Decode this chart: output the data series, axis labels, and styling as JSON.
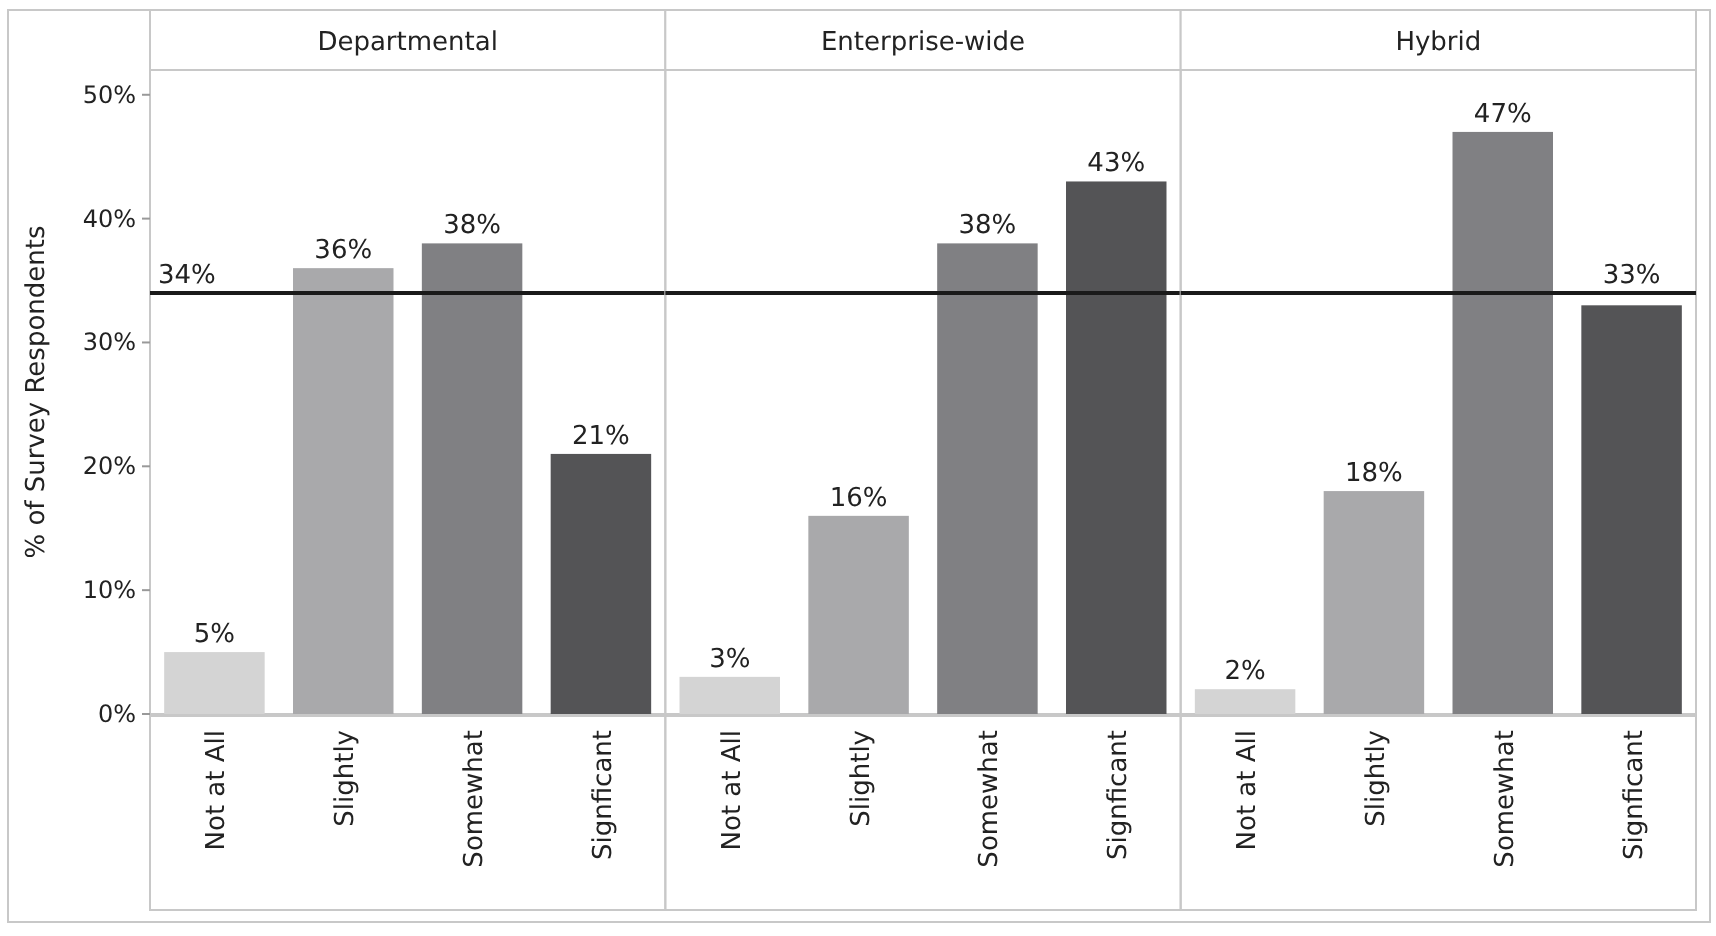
{
  "chart_data": [
    {
      "type": "bar",
      "title": "Departmental",
      "ylabel": "% of Survey Respondents",
      "categories": [
        "Not at All",
        "Slightly",
        "Somewhat",
        "Signficant"
      ],
      "values": [
        5,
        36,
        38,
        21
      ],
      "colors": [
        "#d4d4d4",
        "#a9a9ab",
        "#808083",
        "#545456"
      ],
      "value_labels": [
        "5%",
        "36%",
        "38%",
        "21%"
      ],
      "ylim": [
        0,
        52
      ],
      "yticks": [
        {
          "value": 0,
          "label": "0%"
        },
        {
          "value": 10,
          "label": "10%"
        },
        {
          "value": 20,
          "label": "20%"
        },
        {
          "value": 30,
          "label": "30%"
        },
        {
          "value": 40,
          "label": "40%"
        },
        {
          "value": 50,
          "label": "50%"
        }
      ],
      "ref_lines": [
        {
          "axis": "y",
          "value": 34,
          "label": "34%",
          "color": "#1a1a1a"
        }
      ]
    },
    {
      "type": "bar",
      "title": "Enterprise-wide",
      "categories": [
        "Not at All",
        "Slightly",
        "Somewhat",
        "Signficant"
      ],
      "values": [
        3,
        16,
        38,
        43
      ],
      "colors": [
        "#d4d4d4",
        "#a9a9ab",
        "#808083",
        "#545456"
      ],
      "value_labels": [
        "3%",
        "16%",
        "38%",
        "43%"
      ],
      "ylim": [
        0,
        52
      ],
      "tick_labels": "x",
      "ref_lines": [
        {
          "axis": "y",
          "value": 34,
          "color": "#1a1a1a"
        }
      ]
    },
    {
      "type": "bar",
      "title": "Hybrid",
      "categories": [
        "Not at All",
        "Slightly",
        "Somewhat",
        "Signficant"
      ],
      "values": [
        2,
        18,
        47,
        33
      ],
      "colors": [
        "#d4d4d4",
        "#a9a9ab",
        "#808083",
        "#545456"
      ],
      "value_labels": [
        "2%",
        "18%",
        "47%",
        "33%"
      ],
      "ylim": [
        0,
        52
      ],
      "tick_labels": "x",
      "ref_lines": [
        {
          "axis": "y",
          "value": 34,
          "color": "#1a1a1a"
        }
      ]
    }
  ]
}
